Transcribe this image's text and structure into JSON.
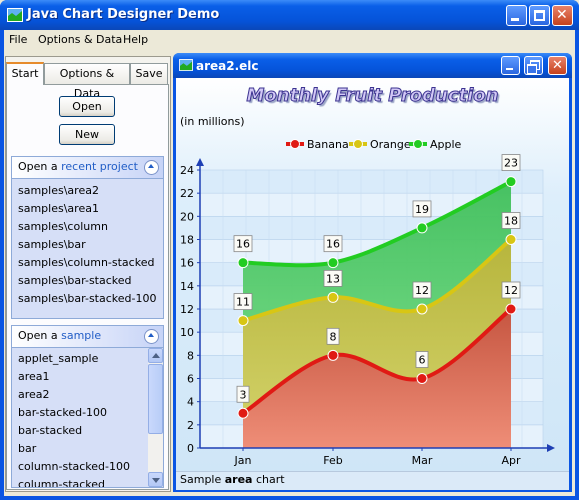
{
  "window": {
    "title": "Java Chart Designer Demo",
    "title_icon": "chart-icon"
  },
  "menu": [
    "File",
    "Options & Data",
    "Help"
  ],
  "left": {
    "tabs": [
      "Start",
      "Options & Data",
      "Save"
    ],
    "open_label": "Open",
    "new_label": "New",
    "recent": {
      "heading_pre": "Open a ",
      "heading_link": "recent project",
      "items": [
        "samples\\area2",
        "samples\\area1",
        "samples\\column",
        "samples\\bar",
        "samples\\column-stacked",
        "samples\\bar-stacked",
        "samples\\bar-stacked-100"
      ]
    },
    "sample": {
      "heading_pre": "Open a ",
      "heading_link": "sample",
      "items": [
        "applet_sample",
        "area1",
        "area2",
        "bar-stacked-100",
        "bar-stacked",
        "bar",
        "column-stacked-100",
        "column-stacked"
      ]
    }
  },
  "doc": {
    "title": "area2.elc",
    "status_pre": "Sample ",
    "status_bold": "area",
    "status_post": " chart"
  },
  "chart_data": {
    "type": "area",
    "title": "Monthly Fruit Production",
    "units_label": "(in millions)",
    "categories": [
      "Jan",
      "Feb",
      "Mar",
      "Apr"
    ],
    "series": [
      {
        "name": "Banana",
        "values": [
          3,
          8,
          6,
          12
        ],
        "color": "#e01a14"
      },
      {
        "name": "Orange",
        "values": [
          11,
          13,
          12,
          18
        ],
        "color": "#d8c614"
      },
      {
        "name": "Apple",
        "values": [
          16,
          16,
          19,
          23
        ],
        "color": "#22cc22"
      }
    ],
    "ylim": [
      0,
      24
    ],
    "yticks": [
      0,
      2,
      4,
      6,
      8,
      10,
      12,
      14,
      16,
      18,
      20,
      22,
      24
    ],
    "grid": true,
    "legend": "top"
  }
}
